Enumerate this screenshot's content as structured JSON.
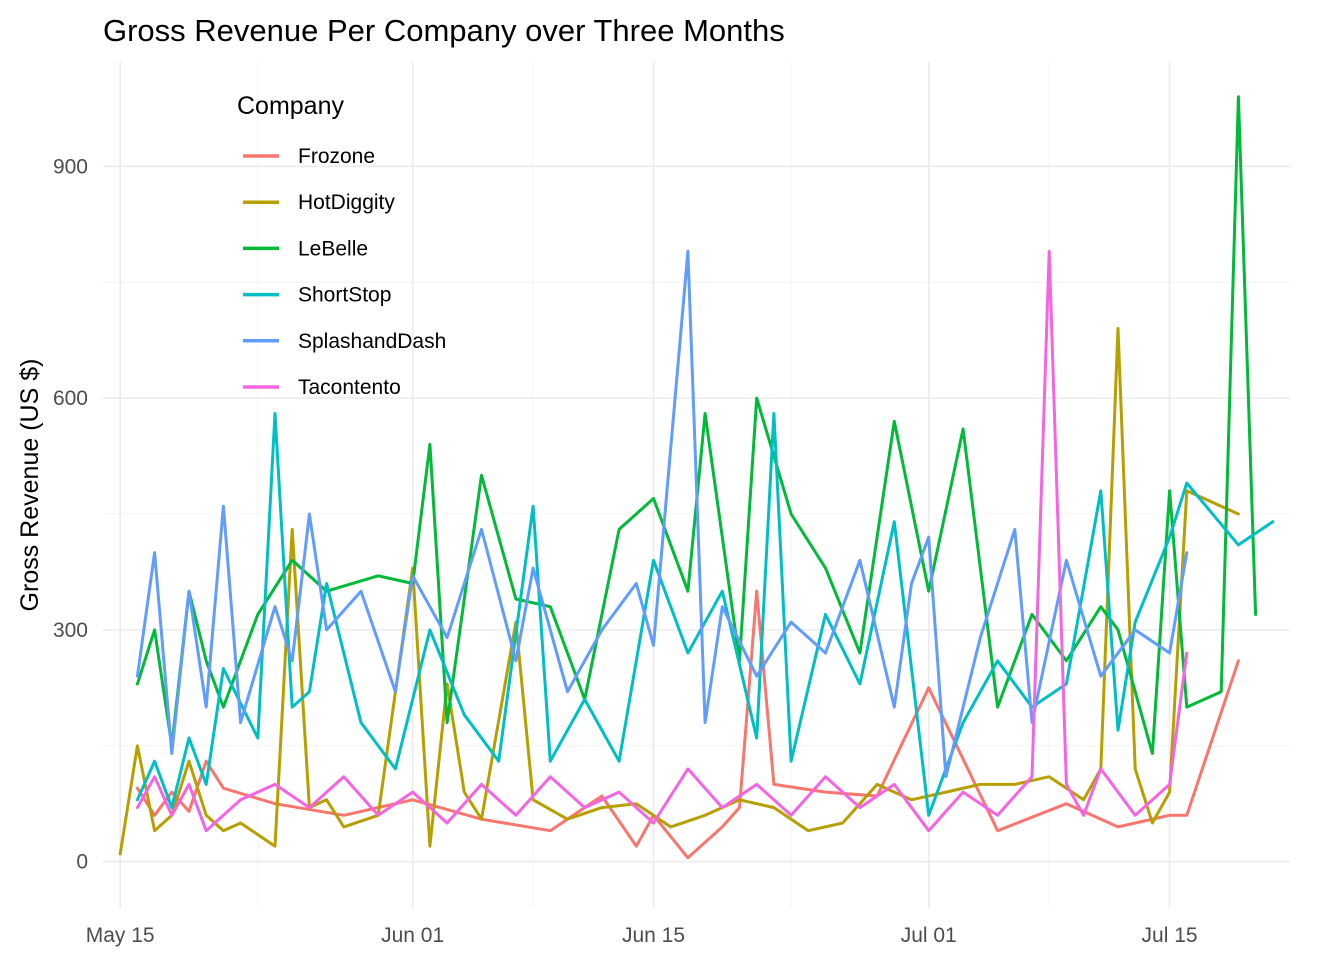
{
  "chart_data": {
    "type": "line",
    "title": "Gross Revenue Per Company over Three Months",
    "xlabel": "",
    "ylabel": "Gross Revenue (US $)",
    "x_type": "date",
    "xlim": [
      "2021-05-14",
      "2021-07-22"
    ],
    "ylim": [
      -60,
      1035
    ],
    "x_ticks": [
      {
        "value": "2021-05-15",
        "label": "May 15"
      },
      {
        "value": "2021-06-01",
        "label": "Jun 01"
      },
      {
        "value": "2021-06-15",
        "label": "Jun 15"
      },
      {
        "value": "2021-07-01",
        "label": "Jul 01"
      },
      {
        "value": "2021-07-15",
        "label": "Jul 15"
      }
    ],
    "y_ticks": [
      0,
      300,
      600,
      900
    ],
    "grid": true,
    "legend": {
      "title": "Company",
      "position": "top-left"
    },
    "series": [
      {
        "name": "Frozone",
        "color": "#F8766D",
        "x": [
          "2021-05-16",
          "2021-05-17",
          "2021-05-18",
          "2021-05-19",
          "2021-05-20",
          "2021-05-21",
          "2021-05-24",
          "2021-05-28",
          "2021-06-01",
          "2021-06-05",
          "2021-06-09",
          "2021-06-12",
          "2021-06-14",
          "2021-06-15",
          "2021-06-17",
          "2021-06-19",
          "2021-06-20",
          "2021-06-21",
          "2021-06-22",
          "2021-06-25",
          "2021-06-28",
          "2021-07-01",
          "2021-07-05",
          "2021-07-09",
          "2021-07-12",
          "2021-07-15",
          "2021-07-16",
          "2021-07-19"
        ],
        "y": [
          95,
          60,
          90,
          65,
          130,
          95,
          75,
          60,
          80,
          55,
          40,
          85,
          20,
          60,
          5,
          45,
          70,
          350,
          100,
          90,
          85,
          225,
          40,
          75,
          45,
          60,
          60,
          260
        ]
      },
      {
        "name": "HotDiggity",
        "color": "#B79F00",
        "x": [
          "2021-05-15",
          "2021-05-16",
          "2021-05-17",
          "2021-05-18",
          "2021-05-19",
          "2021-05-20",
          "2021-05-21",
          "2021-05-22",
          "2021-05-24",
          "2021-05-25",
          "2021-05-26",
          "2021-05-27",
          "2021-05-28",
          "2021-05-30",
          "2021-06-01",
          "2021-06-02",
          "2021-06-03",
          "2021-06-04",
          "2021-06-05",
          "2021-06-07",
          "2021-06-08",
          "2021-06-10",
          "2021-06-12",
          "2021-06-14",
          "2021-06-16",
          "2021-06-18",
          "2021-06-20",
          "2021-06-22",
          "2021-06-24",
          "2021-06-26",
          "2021-06-28",
          "2021-06-30",
          "2021-07-02",
          "2021-07-04",
          "2021-07-06",
          "2021-07-08",
          "2021-07-10",
          "2021-07-11",
          "2021-07-12",
          "2021-07-13",
          "2021-07-14",
          "2021-07-15",
          "2021-07-16",
          "2021-07-19"
        ],
        "y": [
          10,
          150,
          40,
          60,
          130,
          60,
          40,
          50,
          20,
          430,
          70,
          80,
          45,
          60,
          380,
          20,
          230,
          90,
          55,
          310,
          80,
          55,
          70,
          75,
          45,
          60,
          80,
          70,
          40,
          50,
          100,
          80,
          90,
          100,
          100,
          110,
          80,
          120,
          690,
          120,
          50,
          90,
          480,
          450
        ]
      },
      {
        "name": "LeBelle",
        "color": "#00BA38",
        "x": [
          "2021-05-16",
          "2021-05-17",
          "2021-05-18",
          "2021-05-19",
          "2021-05-20",
          "2021-05-21",
          "2021-05-23",
          "2021-05-25",
          "2021-05-27",
          "2021-05-30",
          "2021-06-01",
          "2021-06-02",
          "2021-06-03",
          "2021-06-05",
          "2021-06-07",
          "2021-06-09",
          "2021-06-11",
          "2021-06-13",
          "2021-06-15",
          "2021-06-17",
          "2021-06-18",
          "2021-06-20",
          "2021-06-21",
          "2021-06-23",
          "2021-06-25",
          "2021-06-27",
          "2021-06-29",
          "2021-07-01",
          "2021-07-03",
          "2021-07-05",
          "2021-07-07",
          "2021-07-09",
          "2021-07-11",
          "2021-07-12",
          "2021-07-14",
          "2021-07-15",
          "2021-07-16",
          "2021-07-18",
          "2021-07-19",
          "2021-07-20"
        ],
        "y": [
          230,
          300,
          150,
          350,
          260,
          200,
          320,
          390,
          350,
          370,
          360,
          540,
          180,
          500,
          340,
          330,
          210,
          430,
          470,
          350,
          580,
          260,
          600,
          450,
          380,
          270,
          570,
          350,
          560,
          200,
          320,
          260,
          330,
          300,
          140,
          480,
          200,
          220,
          990,
          320
        ]
      },
      {
        "name": "ShortStop",
        "color": "#00BFC4",
        "x": [
          "2021-05-16",
          "2021-05-17",
          "2021-05-18",
          "2021-05-19",
          "2021-05-20",
          "2021-05-21",
          "2021-05-23",
          "2021-05-24",
          "2021-05-25",
          "2021-05-26",
          "2021-05-27",
          "2021-05-29",
          "2021-05-31",
          "2021-06-02",
          "2021-06-04",
          "2021-06-06",
          "2021-06-08",
          "2021-06-09",
          "2021-06-11",
          "2021-06-13",
          "2021-06-15",
          "2021-06-17",
          "2021-06-19",
          "2021-06-21",
          "2021-06-22",
          "2021-06-23",
          "2021-06-25",
          "2021-06-27",
          "2021-06-29",
          "2021-07-01",
          "2021-07-03",
          "2021-07-05",
          "2021-07-07",
          "2021-07-09",
          "2021-07-11",
          "2021-07-12",
          "2021-07-13",
          "2021-07-15",
          "2021-07-16",
          "2021-07-19",
          "2021-07-21"
        ],
        "y": [
          80,
          130,
          70,
          160,
          100,
          250,
          160,
          580,
          200,
          220,
          360,
          180,
          120,
          300,
          190,
          130,
          460,
          130,
          210,
          130,
          390,
          270,
          350,
          160,
          580,
          130,
          320,
          230,
          440,
          60,
          180,
          260,
          200,
          230,
          480,
          170,
          310,
          420,
          490,
          410,
          440
        ]
      },
      {
        "name": "SplashandDash",
        "color": "#619CFF",
        "x": [
          "2021-05-16",
          "2021-05-17",
          "2021-05-18",
          "2021-05-19",
          "2021-05-20",
          "2021-05-21",
          "2021-05-22",
          "2021-05-24",
          "2021-05-25",
          "2021-05-26",
          "2021-05-27",
          "2021-05-29",
          "2021-05-31",
          "2021-06-01",
          "2021-06-03",
          "2021-06-05",
          "2021-06-07",
          "2021-06-08",
          "2021-06-10",
          "2021-06-12",
          "2021-06-14",
          "2021-06-15",
          "2021-06-17",
          "2021-06-18",
          "2021-06-19",
          "2021-06-21",
          "2021-06-23",
          "2021-06-25",
          "2021-06-27",
          "2021-06-29",
          "2021-06-30",
          "2021-07-01",
          "2021-07-02",
          "2021-07-04",
          "2021-07-06",
          "2021-07-07",
          "2021-07-09",
          "2021-07-11",
          "2021-07-13",
          "2021-07-15",
          "2021-07-16"
        ],
        "y": [
          240,
          400,
          140,
          350,
          200,
          460,
          180,
          330,
          260,
          450,
          300,
          350,
          220,
          370,
          290,
          430,
          260,
          380,
          220,
          300,
          360,
          280,
          790,
          180,
          330,
          240,
          310,
          270,
          390,
          200,
          360,
          420,
          110,
          290,
          430,
          180,
          390,
          240,
          300,
          270,
          400
        ]
      },
      {
        "name": "Tacontento",
        "color": "#F564E3",
        "x": [
          "2021-05-16",
          "2021-05-17",
          "2021-05-18",
          "2021-05-19",
          "2021-05-20",
          "2021-05-22",
          "2021-05-24",
          "2021-05-26",
          "2021-05-28",
          "2021-05-30",
          "2021-06-01",
          "2021-06-03",
          "2021-06-05",
          "2021-06-07",
          "2021-06-09",
          "2021-06-11",
          "2021-06-13",
          "2021-06-15",
          "2021-06-17",
          "2021-06-19",
          "2021-06-21",
          "2021-06-23",
          "2021-06-25",
          "2021-06-27",
          "2021-06-29",
          "2021-07-01",
          "2021-07-03",
          "2021-07-05",
          "2021-07-07",
          "2021-07-08",
          "2021-07-09",
          "2021-07-10",
          "2021-07-11",
          "2021-07-13",
          "2021-07-15",
          "2021-07-16"
        ],
        "y": [
          70,
          110,
          60,
          100,
          40,
          80,
          100,
          70,
          110,
          60,
          90,
          50,
          100,
          60,
          110,
          70,
          90,
          50,
          120,
          70,
          100,
          60,
          110,
          70,
          100,
          40,
          90,
          60,
          110,
          790,
          100,
          60,
          120,
          60,
          100,
          270
        ]
      }
    ]
  }
}
